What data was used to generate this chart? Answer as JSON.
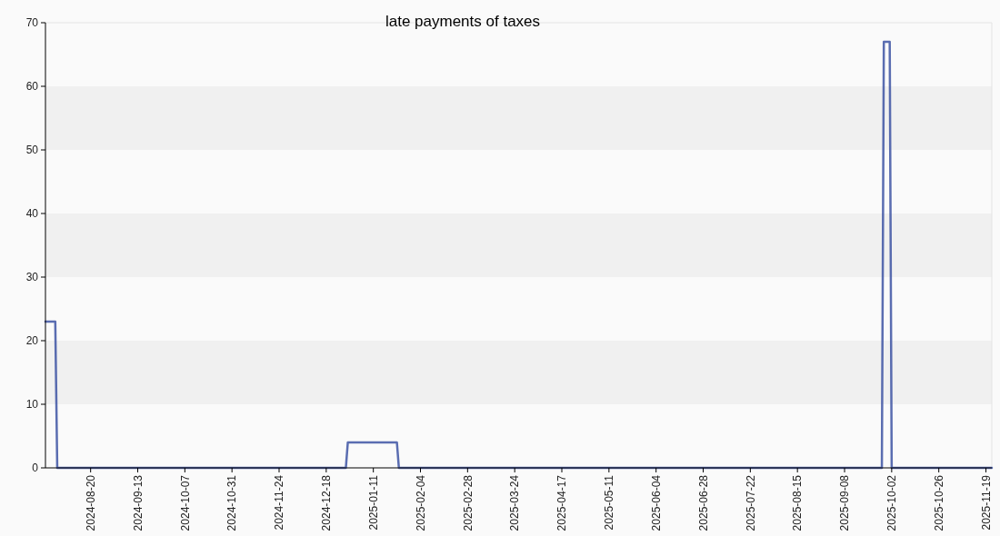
{
  "chart_data": {
    "type": "line",
    "title": "late payments of taxes",
    "x": [
      "2024-07-28",
      "2024-08-02",
      "2024-08-03",
      "2024-12-28",
      "2024-12-29",
      "2025-01-23",
      "2025-01-24",
      "2025-09-27",
      "2025-09-28",
      "2025-10-01",
      "2025-10-02",
      "2025-11-22"
    ],
    "values": [
      23,
      23,
      0,
      0,
      4,
      4,
      0,
      0,
      67,
      67,
      0,
      0
    ],
    "color": "#3d53a3",
    "xlim": [
      "2024-07-28",
      "2025-11-22"
    ],
    "xticks": [
      "2024-08-20",
      "2024-09-13",
      "2024-10-07",
      "2024-10-31",
      "2024-11-24",
      "2024-12-18",
      "2025-01-11",
      "2025-02-04",
      "2025-02-28",
      "2025-03-24",
      "2025-04-17",
      "2025-05-11",
      "2025-06-04",
      "2025-06-28",
      "2025-07-22",
      "2025-08-15",
      "2025-09-08",
      "2025-10-02",
      "2025-10-26",
      "2025-11-19"
    ],
    "ylim": [
      0,
      70
    ],
    "yticks": [
      0,
      10,
      20,
      30,
      40,
      50,
      60,
      70
    ],
    "bands": [
      {
        "axis": "y",
        "from": 10,
        "to": 20,
        "color": "#f0f0f0"
      },
      {
        "axis": "y",
        "from": 30,
        "to": 40,
        "color": "#f0f0f0"
      },
      {
        "axis": "y",
        "from": 50,
        "to": 60,
        "color": "#f0f0f0"
      }
    ],
    "marker": "none",
    "line_style": "solid"
  }
}
